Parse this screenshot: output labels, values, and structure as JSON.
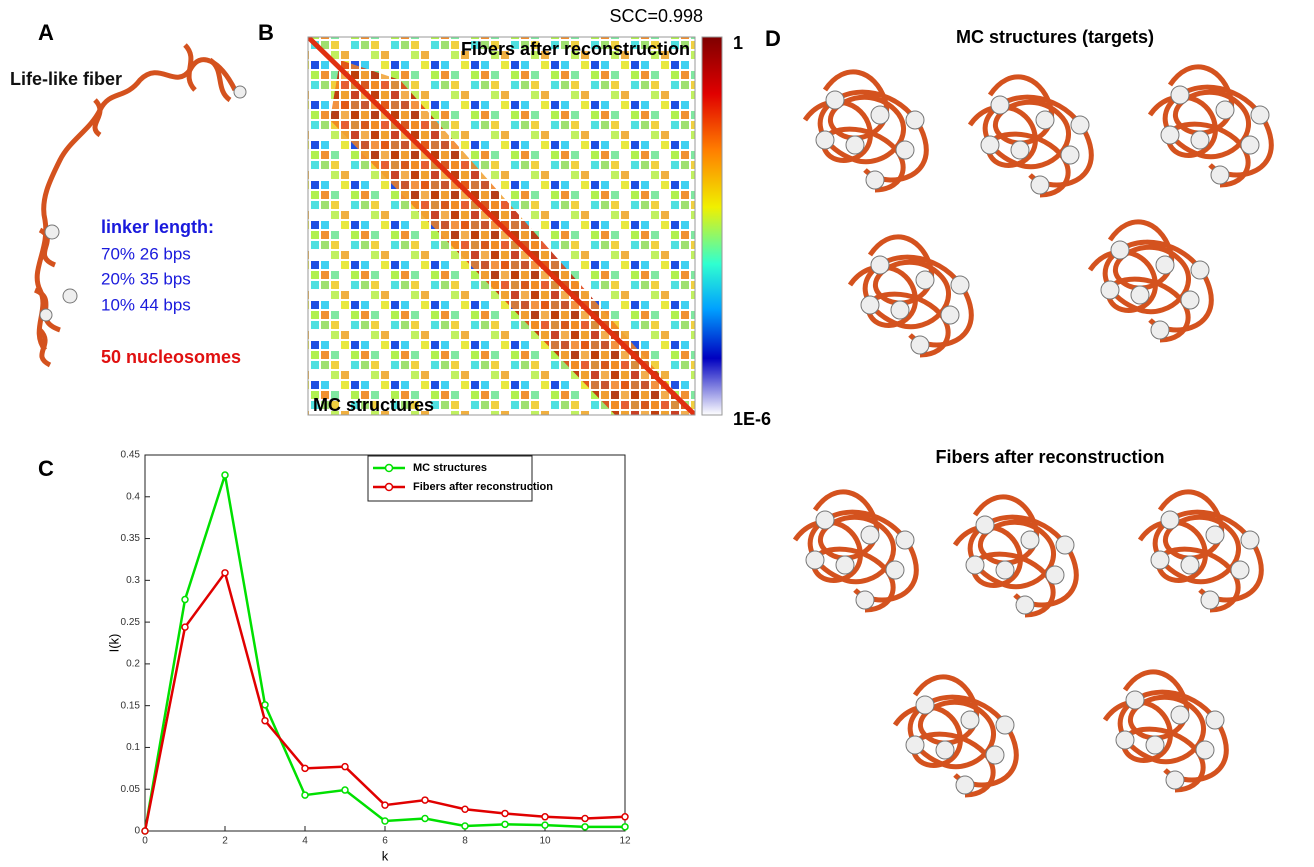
{
  "panel_labels": [
    "A",
    "B",
    "C",
    "D"
  ],
  "panel_a": {
    "title": "Life-like fiber",
    "linker_heading": "linker length:",
    "linker_lines": [
      "70% 26 bps",
      "20% 35 bps",
      "10% 44 bps"
    ],
    "nucleosomes": "50 nucleosomes"
  },
  "panel_b": {
    "scc": "SCC=0.998",
    "upper_label": "Fibers after reconstruction",
    "lower_label": "MC structures",
    "colorbar_max": "1",
    "colorbar_min": "1E-6"
  },
  "panel_d": {
    "top_title": "MC structures (targets)",
    "bottom_title": "Fibers after reconstruction"
  },
  "chart_data": {
    "type": "line",
    "xlabel": "k",
    "ylabel": "I(k)",
    "x": [
      0,
      1,
      2,
      3,
      4,
      5,
      6,
      7,
      8,
      9,
      10,
      11,
      12
    ],
    "xlim": [
      0,
      12
    ],
    "ylim": [
      0,
      0.45
    ],
    "xticks": [
      0,
      2,
      4,
      6,
      8,
      10,
      12
    ],
    "yticks": [
      0,
      0.05,
      0.1,
      0.15,
      0.2,
      0.25,
      0.3,
      0.35,
      0.4,
      0.45
    ],
    "series": [
      {
        "name": "MC structures",
        "color": "#00e000",
        "values": [
          0,
          0.277,
          0.426,
          0.151,
          0.043,
          0.049,
          0.012,
          0.015,
          0.006,
          0.008,
          0.007,
          0.005,
          0.005
        ]
      },
      {
        "name": "Fibers after reconstruction",
        "color": "#e00000",
        "values": [
          0,
          0.244,
          0.309,
          0.132,
          0.075,
          0.077,
          0.031,
          0.037,
          0.026,
          0.021,
          0.017,
          0.015,
          0.017
        ]
      }
    ]
  }
}
